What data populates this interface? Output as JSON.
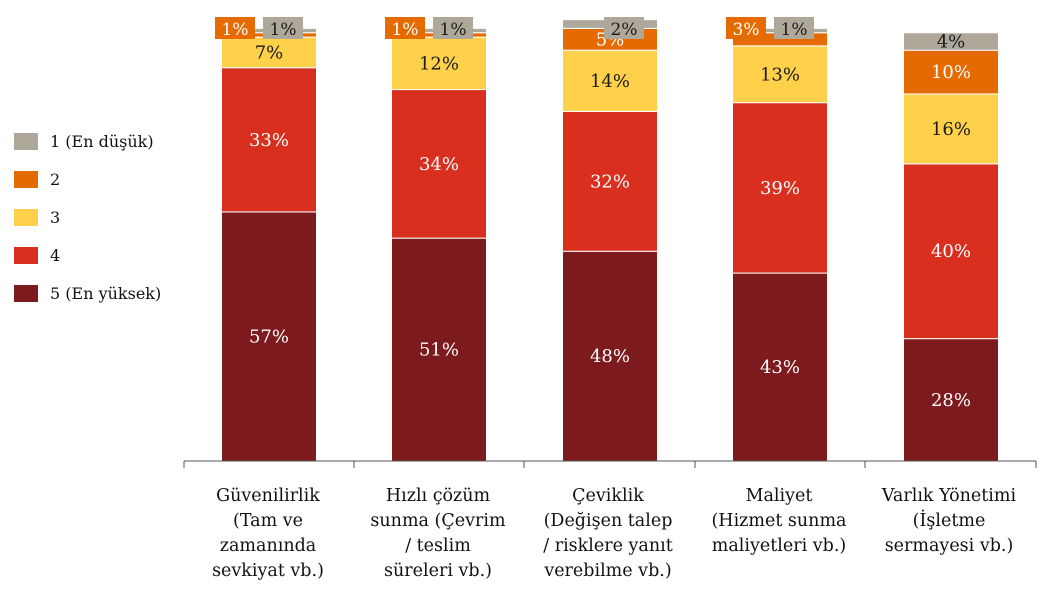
{
  "chart_data": {
    "type": "bar",
    "stacked": true,
    "normalized": true,
    "title": "",
    "xlabel": "",
    "ylabel": "",
    "ylim": [
      0,
      100
    ],
    "grid": false,
    "legend_position": "left",
    "value_suffix": "%",
    "categories": [
      "Güvenilirlik\n(Tam ve\nzamanında\nsevkiyat vb.)",
      "Hızlı çözüm\nsunma (Çevrim\n/ teslim\nsüreleri vb.)",
      "Çeviklik\n(Değişen talep\n/ risklere yanıt\nverebilme vb.)",
      "Maliyet\n(Hizmet sunma\nmaliyetleri vb.)",
      "Varlık Yönetimi\n(İşletme\nsermayesi vb.)"
    ],
    "series": [
      {
        "name": "5 (En yüksek)",
        "color": "#7d1a1d",
        "values": [
          57,
          51,
          48,
          43,
          28
        ]
      },
      {
        "name": "4",
        "color": "#d92f1e",
        "values": [
          33,
          34,
          32,
          39,
          40
        ]
      },
      {
        "name": "3",
        "color": "#ffd04a",
        "values": [
          7,
          12,
          14,
          13,
          16
        ]
      },
      {
        "name": "2",
        "color": "#e56b00",
        "values": [
          1,
          1,
          5,
          3,
          10
        ]
      },
      {
        "name": "1 (En düşük)",
        "color": "#aea89b",
        "values": [
          1,
          1,
          2,
          1,
          4
        ]
      }
    ]
  }
}
